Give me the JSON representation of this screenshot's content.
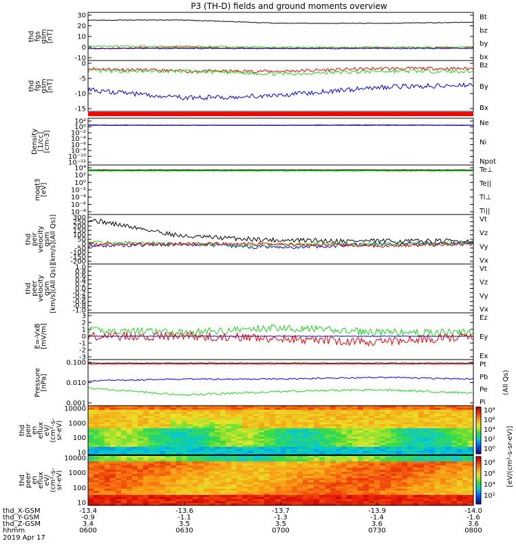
{
  "title": "P3 (TH-D) fields and ground moments overview",
  "colors": {
    "black": "#000000",
    "red": "#e00000",
    "green": "#20d020",
    "blue": "#0000d0"
  },
  "panels": [
    {
      "id": "fgs",
      "ylabel": [
        "thd",
        "fgs",
        "gsm",
        "[nT]"
      ],
      "ticks": [
        "30",
        "20",
        "10",
        "0",
        "-10"
      ],
      "legend": [
        {
          "text": "Bt",
          "color": "black"
        },
        {
          "text": "bz",
          "color": "red"
        },
        {
          "text": "by",
          "color": "green"
        },
        {
          "text": "bx",
          "color": "blue"
        }
      ]
    },
    {
      "id": "fgs2",
      "ylabel": [
        "thd",
        "fgs",
        "gsm",
        "[nT]"
      ],
      "ticks": [
        "0",
        "-5",
        "-10",
        "-15"
      ],
      "legend": [
        {
          "text": "Bz",
          "color": "red"
        },
        {
          "text": "By",
          "color": "green"
        },
        {
          "text": "Bx",
          "color": "blue"
        }
      ]
    },
    {
      "id": "dens",
      "ylabel": [
        "Density",
        "[1/cc]",
        "[cm-3]"
      ],
      "ticks": [
        "10²",
        "10⁰",
        "10⁻²",
        "10⁻⁴",
        "10⁻⁶",
        "10⁻⁸",
        "10⁻¹⁰",
        "10⁻¹²"
      ],
      "legend": [
        {
          "text": "Ne",
          "color": "red"
        },
        {
          "text": "Ni",
          "color": "black"
        },
        {
          "text": "Npot",
          "color": "blue"
        }
      ]
    },
    {
      "id": "temp",
      "ylabel": [
        "moqt3",
        "[eV]"
      ],
      "ticks": [
        "10⁴",
        "10²",
        "10⁰",
        "10⁻²",
        "10⁻⁴",
        "10⁻⁶",
        "10⁻⁸"
      ],
      "legend": [
        {
          "text": "Te⊥",
          "color": "red"
        },
        {
          "text": "Te||",
          "color": "black"
        },
        {
          "text": "Ti⊥",
          "color": "green"
        },
        {
          "text": "Ti||",
          "color": "green"
        }
      ]
    },
    {
      "id": "vi",
      "ylabel": [
        "thd",
        "peir",
        "velocity",
        "gsm",
        "[km/s](All Qs)]"
      ],
      "ticks": [
        "300",
        "250",
        "200",
        "150",
        "100",
        "50",
        "0",
        "-50",
        "-100",
        "-150",
        "-200"
      ],
      "legend": [
        {
          "text": "Vt",
          "color": "black"
        },
        {
          "text": "Vz",
          "color": "red"
        },
        {
          "text": "Vy",
          "color": "green"
        },
        {
          "text": "Vx",
          "color": "blue"
        }
      ]
    },
    {
      "id": "ve",
      "ylabel": [
        "thd",
        "peer",
        "velocity",
        "gsm",
        "[km/s](All Qs)]"
      ],
      "ticks": [
        "1.0",
        "0.8",
        "0.6",
        "0.4",
        "0.2",
        "0.0",
        "-0.2",
        "-0.4",
        "-0.6",
        "-0.8",
        "-1.0"
      ],
      "legend": [
        {
          "text": "Vt",
          "color": "black"
        },
        {
          "text": "Vz",
          "color": "red"
        },
        {
          "text": "Vy",
          "color": "green"
        },
        {
          "text": "Vx",
          "color": "blue"
        }
      ]
    },
    {
      "id": "efield",
      "ylabel": [
        "E=-VxB",
        "[mV/m]"
      ],
      "ticks": [
        "3",
        "2",
        "1",
        "0",
        "-1",
        "-2",
        "-3"
      ],
      "legend": [
        {
          "text": "Ez",
          "color": "red"
        },
        {
          "text": "Ey",
          "color": "green"
        },
        {
          "text": "Ex",
          "color": "blue"
        }
      ]
    },
    {
      "id": "press",
      "ylabel": [
        "Pressure",
        "[nPa]"
      ],
      "ticks": [
        "0.100",
        "0.010",
        "0.001"
      ],
      "legend": [
        {
          "text": "Pt",
          "color": "black"
        },
        {
          "text": "Pb",
          "color": "red"
        },
        {
          "text": "Pe",
          "color": "green"
        },
        {
          "text": "Pi",
          "color": "blue"
        }
      ],
      "legend_note": "(All Qs)"
    },
    {
      "id": "ispec",
      "ylabel": [
        "thd",
        "peir",
        "en",
        "eflux",
        "eV/",
        "(cm²-s-",
        "sr-eV)"
      ],
      "ticks": [
        "10000",
        "1000",
        "100",
        "10"
      ]
    },
    {
      "id": "espec",
      "ylabel": [
        "thd",
        "peer",
        "en",
        "eflux",
        "eV/",
        "(cm²-s-",
        "sr-eV)"
      ],
      "ticks": [
        "10000",
        "1000",
        "100",
        "10"
      ]
    }
  ],
  "colorbar": {
    "label": "[eV/(cm²-s-sr-eV)]",
    "top_ticks": [
      "10⁸",
      "10⁶",
      "10⁴",
      "10²",
      "10⁰"
    ],
    "bottom_ticks": [
      "10⁸",
      "10⁶",
      "10⁴",
      "10²"
    ]
  },
  "bottom": {
    "rows": [
      {
        "label": "thd_X-GSM",
        "values": [
          "-13.4",
          "-13.6",
          "-13.7",
          "-13.9",
          "-14.0"
        ]
      },
      {
        "label": "thd_Y-GSM",
        "values": [
          "-0.9",
          "-1.1",
          "-1.3",
          "-1.4",
          "-1.6"
        ]
      },
      {
        "label": "thd_Z-GSM",
        "values": [
          "3.4",
          "3.5",
          "3.5",
          "3.6",
          "3.6"
        ]
      },
      {
        "label": "hhmm",
        "values": [
          "0600",
          "0630",
          "0700",
          "0730",
          "0800"
        ]
      }
    ],
    "date": "2019 Apr 17"
  },
  "chart_data": {
    "type": "line",
    "title": "P3 (TH-D) fields and ground moments overview",
    "time": [
      "0600",
      "0630",
      "0700",
      "0730",
      "0800"
    ],
    "fgs_nT": {
      "Bt": [
        25,
        25,
        22,
        22,
        23
      ],
      "bz": [
        -1,
        0,
        -1,
        0,
        0
      ],
      "by": [
        1,
        1,
        0,
        0,
        0
      ],
      "bx": [
        -1,
        -1,
        -1,
        -1,
        -1
      ]
    },
    "fgs2_nT": {
      "Bz": [
        -1,
        -2,
        -2,
        -1,
        -1
      ],
      "By": [
        -2,
        -2,
        -3,
        -2,
        -2
      ],
      "Bx": [
        -9,
        -12,
        -11,
        -8,
        -7
      ]
    },
    "density_log10": {
      "Ne": [
        0.6,
        0.6,
        0.6,
        0.7,
        0.6
      ],
      "Ni": [
        0.6,
        0.6,
        0.6,
        0.6,
        0.6
      ],
      "Npot": [
        0.7,
        0.6,
        0.6,
        0.7,
        0.6
      ]
    },
    "temp_log10": {
      "Teperp": [
        3.5,
        3.5,
        3.6,
        3.6,
        3.5
      ],
      "Tepar": [
        3.6,
        3.6,
        3.6,
        3.6,
        3.6
      ],
      "Tiperp": [
        3.3,
        3.3,
        3.3,
        3.3,
        3.3
      ],
      "Tipar": [
        3.4,
        3.4,
        3.4,
        3.4,
        3.4
      ]
    },
    "vi_kms": {
      "Vt": [
        260,
        80,
        40,
        30,
        30
      ],
      "Vz": [
        0,
        0,
        0,
        -20,
        0
      ],
      "Vy": [
        20,
        0,
        -10,
        0,
        10
      ],
      "Vx": [
        -20,
        0,
        -40,
        0,
        10
      ]
    },
    "efield_mVm": {
      "Ez": [
        0,
        0,
        -0.3,
        -0.8,
        0
      ],
      "Ey": [
        0.8,
        0.5,
        1.2,
        0.5,
        0.5
      ],
      "Ex": [
        0,
        0,
        0,
        0,
        0
      ]
    },
    "pressure_log10": {
      "Pt": [
        -0.7,
        -0.7,
        -0.7,
        -0.7,
        -0.7
      ],
      "Pb": [
        -0.75,
        -0.75,
        -0.75,
        -0.75,
        -0.75
      ],
      "Pe": [
        -1.7,
        -1.6,
        -1.6,
        -1.5,
        -1.6
      ],
      "Pi": [
        -2.1,
        -2.5,
        -2.3,
        -2.2,
        -2.4
      ]
    }
  }
}
